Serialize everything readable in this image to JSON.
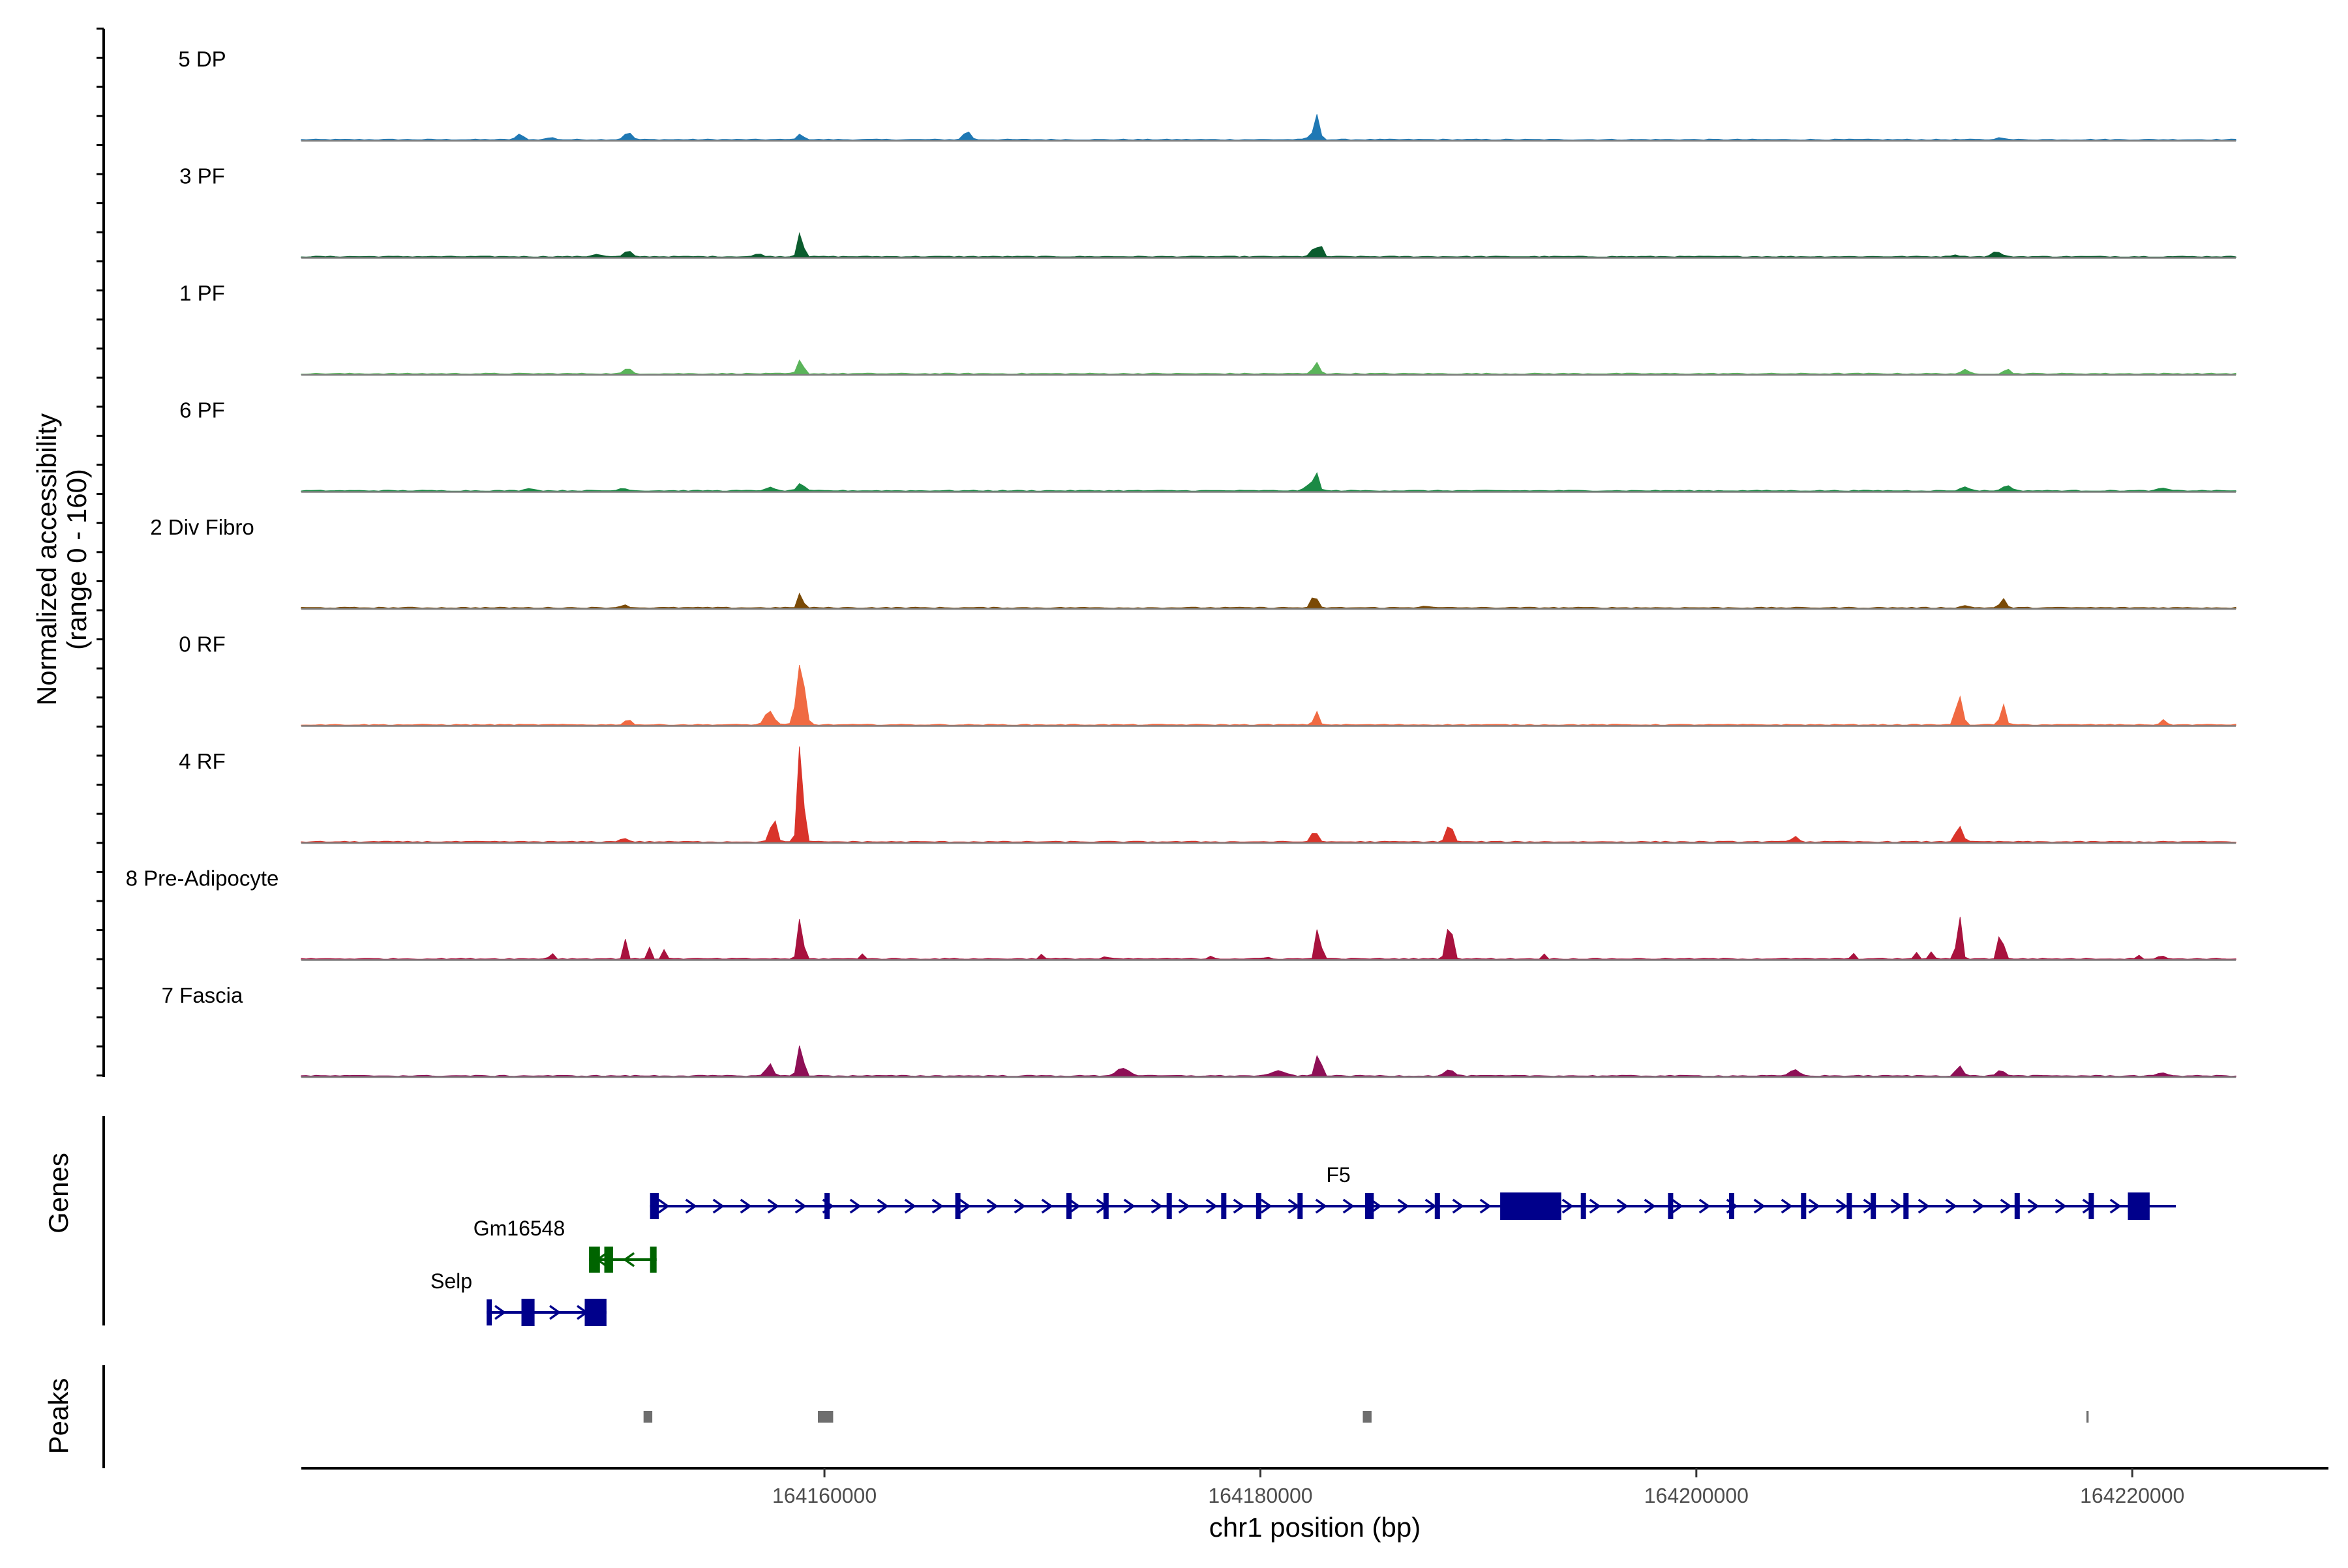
{
  "chart_data": {
    "type": "area",
    "title": "",
    "xlabel": "chr1 position (bp)",
    "ylabel": "Normalized accessibility",
    "ylabel_sub": "(range 0 - 160)",
    "xlim": [
      164136000,
      164229000
    ],
    "ylim": [
      0,
      160
    ],
    "x_ticks": [
      164160000,
      164180000,
      164200000,
      164220000
    ],
    "x_tick_labels": [
      "164160000",
      "164180000",
      "164200000",
      "164220000"
    ],
    "tracks": [
      {
        "name": "5 DP",
        "color": "#1f78b4",
        "peaks": [
          [
            164146500,
            8,
            170
          ],
          [
            164148000,
            3,
            200
          ],
          [
            164151700,
            11,
            180
          ],
          [
            164160000,
            8,
            160
          ],
          [
            164168000,
            14,
            150
          ],
          [
            164184900,
            50,
            70
          ],
          [
            164184700,
            12,
            200
          ],
          [
            164217700,
            5,
            120
          ]
        ]
      },
      {
        "name": "3 PF",
        "color": "#0b5c2e",
        "peaks": [
          [
            164150200,
            4,
            200
          ],
          [
            164151700,
            9,
            160
          ],
          [
            164158000,
            4,
            200
          ],
          [
            164160000,
            40,
            120
          ],
          [
            164184700,
            12,
            180
          ],
          [
            164185000,
            16,
            100
          ],
          [
            164217500,
            8,
            200
          ],
          [
            164215500,
            3,
            200
          ]
        ]
      },
      {
        "name": "1 PF",
        "color": "#5ab45a",
        "peaks": [
          [
            164151700,
            8,
            170
          ],
          [
            164160000,
            22,
            130
          ],
          [
            164184800,
            18,
            140
          ],
          [
            164216000,
            6,
            150
          ],
          [
            164218000,
            7,
            150
          ]
        ]
      },
      {
        "name": "6 PF",
        "color": "#1b8a45",
        "peaks": [
          [
            164147000,
            4,
            200
          ],
          [
            164151500,
            4,
            200
          ],
          [
            164158500,
            5,
            200
          ],
          [
            164160000,
            12,
            150
          ],
          [
            164184800,
            26,
            110
          ],
          [
            164184500,
            10,
            200
          ],
          [
            164216000,
            6,
            200
          ],
          [
            164218000,
            9,
            180
          ],
          [
            164225500,
            4,
            200
          ]
        ]
      },
      {
        "name": "2 Div Fibro",
        "color": "#7a4a06",
        "peaks": [
          [
            164151500,
            4,
            200
          ],
          [
            164160000,
            24,
            110
          ],
          [
            164184700,
            20,
            130
          ],
          [
            164190000,
            3,
            200
          ],
          [
            164216000,
            3,
            200
          ],
          [
            164217800,
            14,
            130
          ]
        ]
      },
      {
        "name": "0 RF",
        "color": "#f06a42",
        "peaks": [
          [
            164151700,
            8,
            160
          ],
          [
            164158500,
            22,
            200
          ],
          [
            164160000,
            95,
            180
          ],
          [
            164184800,
            20,
            120
          ],
          [
            164215700,
            45,
            150
          ],
          [
            164217800,
            34,
            110
          ],
          [
            164225500,
            8,
            120
          ]
        ]
      },
      {
        "name": "4 RF",
        "color": "#d9342a",
        "peaks": [
          [
            164151500,
            5,
            200
          ],
          [
            164158700,
            38,
            140
          ],
          [
            164160000,
            160,
            120
          ],
          [
            164184700,
            20,
            120
          ],
          [
            164191200,
            28,
            150
          ],
          [
            164207800,
            9,
            150
          ],
          [
            164215700,
            25,
            160
          ]
        ]
      },
      {
        "name": "8 Pre-Adipocyte",
        "color": "#a8123e",
        "peaks": [
          [
            164148000,
            18,
            70
          ],
          [
            164151600,
            32,
            70
          ],
          [
            164152700,
            20,
            70
          ],
          [
            164153500,
            22,
            70
          ],
          [
            164160000,
            68,
            110
          ],
          [
            164163000,
            9,
            70
          ],
          [
            164171600,
            8,
            70
          ],
          [
            164174700,
            8,
            70
          ],
          [
            164179800,
            10,
            70
          ],
          [
            164182400,
            6,
            70
          ],
          [
            164184900,
            60,
            100
          ],
          [
            164191200,
            58,
            140
          ],
          [
            164195700,
            9,
            70
          ],
          [
            164210600,
            9,
            70
          ],
          [
            164213700,
            12,
            70
          ],
          [
            164214400,
            14,
            70
          ],
          [
            164215700,
            70,
            110
          ],
          [
            164217700,
            48,
            110
          ],
          [
            164224300,
            8,
            70
          ],
          [
            164225400,
            14,
            70
          ]
        ]
      },
      {
        "name": "7 Fascia",
        "color": "#8e0f56",
        "peaks": [
          [
            164158500,
            20,
            150
          ],
          [
            164160000,
            50,
            130
          ],
          [
            164175500,
            12,
            300
          ],
          [
            164184900,
            36,
            130
          ],
          [
            164183000,
            8,
            300
          ],
          [
            164191200,
            10,
            200
          ],
          [
            164207800,
            10,
            200
          ],
          [
            164215700,
            16,
            150
          ],
          [
            164217700,
            8,
            200
          ],
          [
            164225500,
            5,
            200
          ]
        ]
      }
    ],
    "genes": [
      {
        "name": "F5",
        "strand": "+",
        "color": "#00008b",
        "start": 164152000,
        "end": 164222000,
        "exons": [
          [
            164152000,
            164152400
          ],
          [
            164160000,
            164160200
          ],
          [
            164166000,
            164166200
          ],
          [
            164171100,
            164171300
          ],
          [
            164172800,
            164173000
          ],
          [
            164175700,
            164175900
          ],
          [
            164178200,
            164178400
          ],
          [
            164179800,
            164180000
          ],
          [
            164181700,
            164181900
          ],
          [
            164184800,
            164185200
          ],
          [
            164188000,
            164188200
          ],
          [
            164191000,
            164193800
          ],
          [
            164194700,
            164194900
          ],
          [
            164198700,
            164198900
          ],
          [
            164201500,
            164201700
          ],
          [
            164204800,
            164205000
          ],
          [
            164206900,
            164207100
          ],
          [
            164208000,
            164208200
          ],
          [
            164209500,
            164209700
          ],
          [
            164214600,
            164214800
          ],
          [
            164218000,
            164218200
          ],
          [
            164219800,
            164220800
          ]
        ]
      },
      {
        "name": "Gm16548",
        "strand": "-",
        "color": "#006400",
        "start": 164149200,
        "end": 164152300,
        "exons": [
          [
            164149200,
            164149700
          ],
          [
            164149900,
            164150300
          ],
          [
            164152000,
            164152300
          ]
        ]
      },
      {
        "name": "Selp",
        "strand": "+",
        "color": "#00008b",
        "start": 164144500,
        "end": 164150000,
        "exons": [
          [
            164144500,
            164144700
          ],
          [
            164146100,
            164146700
          ],
          [
            164149000,
            164150000
          ]
        ]
      }
    ],
    "peaks_track": {
      "label": "Peaks",
      "regions": [
        [
          164151700,
          164152100
        ],
        [
          164159700,
          164160400
        ],
        [
          164184700,
          164185100
        ],
        [
          164217900,
          164218000
        ]
      ]
    },
    "panel_labels": {
      "genes": "Genes",
      "peaks": "Peaks"
    }
  }
}
